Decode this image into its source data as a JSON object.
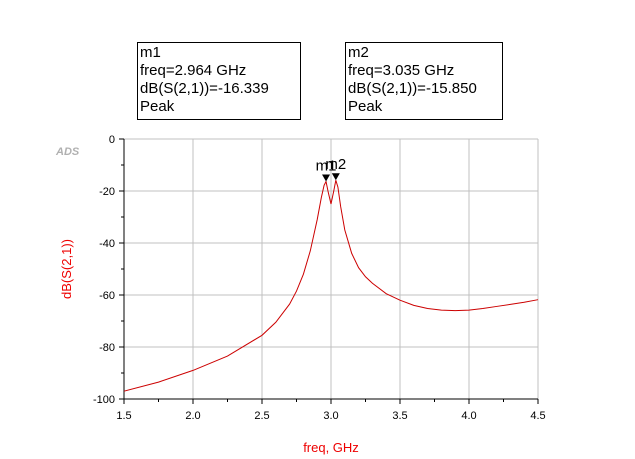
{
  "logo": "ADS",
  "markers": [
    {
      "name": "m1",
      "freq_text": "freq=2.964 GHz",
      "value_text": "dB(S(2,1))=-16.339",
      "type": "Peak",
      "freq": 2.964,
      "value": -16.339
    },
    {
      "name": "m2",
      "freq_text": "freq=3.035 GHz",
      "value_text": "dB(S(2,1))=-15.850",
      "type": "Peak",
      "freq": 3.035,
      "value": -15.85
    }
  ],
  "chart_data": {
    "type": "line",
    "title": "",
    "xlabel": "freq, GHz",
    "ylabel": "dB(S(2,1))",
    "xlim": [
      1.5,
      4.5
    ],
    "ylim": [
      -100,
      0
    ],
    "xticks": [
      "1.5",
      "2.0",
      "2.5",
      "3.0",
      "3.5",
      "4.0",
      "4.5"
    ],
    "yticks": [
      "0",
      "-20",
      "-40",
      "-60",
      "-80",
      "-100"
    ],
    "grid": true,
    "colors": {
      "trace": "#cc0000",
      "axis_title": "#ee0000",
      "grid": "#c0c0c0"
    },
    "series": [
      {
        "x": [
          1.5,
          1.75,
          2.0,
          2.25,
          2.5,
          2.6,
          2.7,
          2.75,
          2.8,
          2.85,
          2.9,
          2.93,
          2.95,
          2.964,
          2.98,
          3.0,
          3.02,
          3.035,
          3.05,
          3.07,
          3.1,
          3.15,
          3.2,
          3.25,
          3.3,
          3.4,
          3.5,
          3.6,
          3.7,
          3.8,
          3.9,
          4.0,
          4.1,
          4.2,
          4.3,
          4.4,
          4.5
        ],
        "y": [
          -97,
          -93.5,
          -89,
          -83.5,
          -75.5,
          -70.5,
          -63.5,
          -58.5,
          -52,
          -43,
          -31,
          -22.5,
          -17.8,
          -16.339,
          -20.5,
          -25,
          -20,
          -15.85,
          -18.5,
          -26,
          -35,
          -44,
          -49.5,
          -53,
          -55.5,
          -59.5,
          -62,
          -64,
          -65.2,
          -65.8,
          -66,
          -65.8,
          -65.2,
          -64.4,
          -63.6,
          -62.8,
          -61.8
        ]
      }
    ]
  }
}
